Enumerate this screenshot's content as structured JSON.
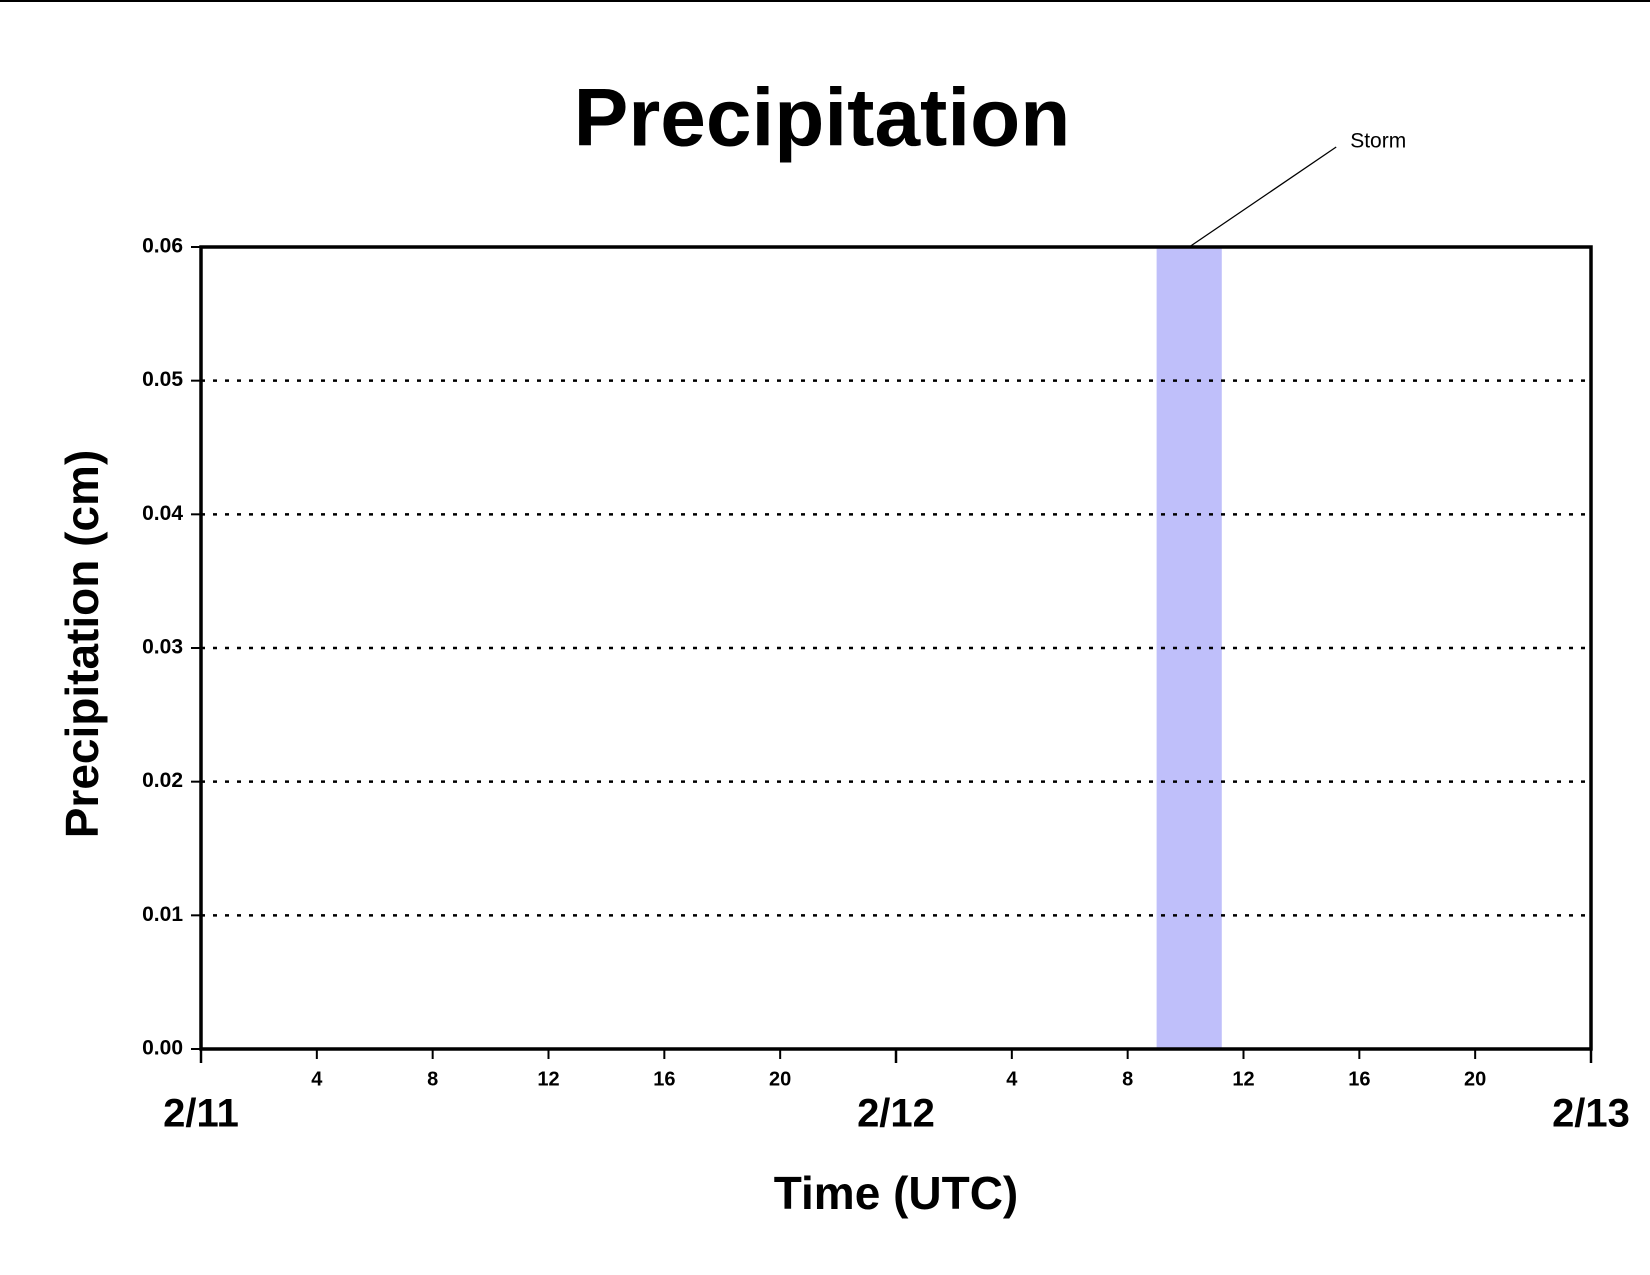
{
  "chart_data": {
    "type": "line",
    "title": "Precipitation",
    "xlabel": "Time (UTC)",
    "ylabel": "Precipitation (cm)",
    "series": [
      {
        "color": "#a00000",
        "x": [
          0,
          48
        ],
        "values": [
          0,
          0
        ]
      }
    ],
    "xlim": [
      0,
      48
    ],
    "xticks": [
      4,
      8,
      12,
      16,
      20,
      {
        "value": 28,
        "label": "4"
      },
      {
        "value": 32,
        "label": "8"
      },
      {
        "value": 36,
        "label": "12"
      },
      {
        "value": 40,
        "label": "16"
      },
      {
        "value": 44,
        "label": "20"
      }
    ],
    "date_ticks": [
      {
        "value": 0,
        "label": "2/11"
      },
      {
        "value": 24,
        "label": "2/12"
      },
      {
        "value": 48,
        "label": "2/13"
      }
    ],
    "ylim": [
      0,
      0.06
    ],
    "yticks": [
      {
        "value": 0,
        "label": "0.00"
      },
      0.01,
      0.02,
      0.03,
      0.04,
      0.05,
      0.06
    ],
    "grid": true,
    "shaded_span": {
      "label": "Storm",
      "x": [
        33,
        35.25
      ],
      "color": "#bfbffa"
    }
  }
}
